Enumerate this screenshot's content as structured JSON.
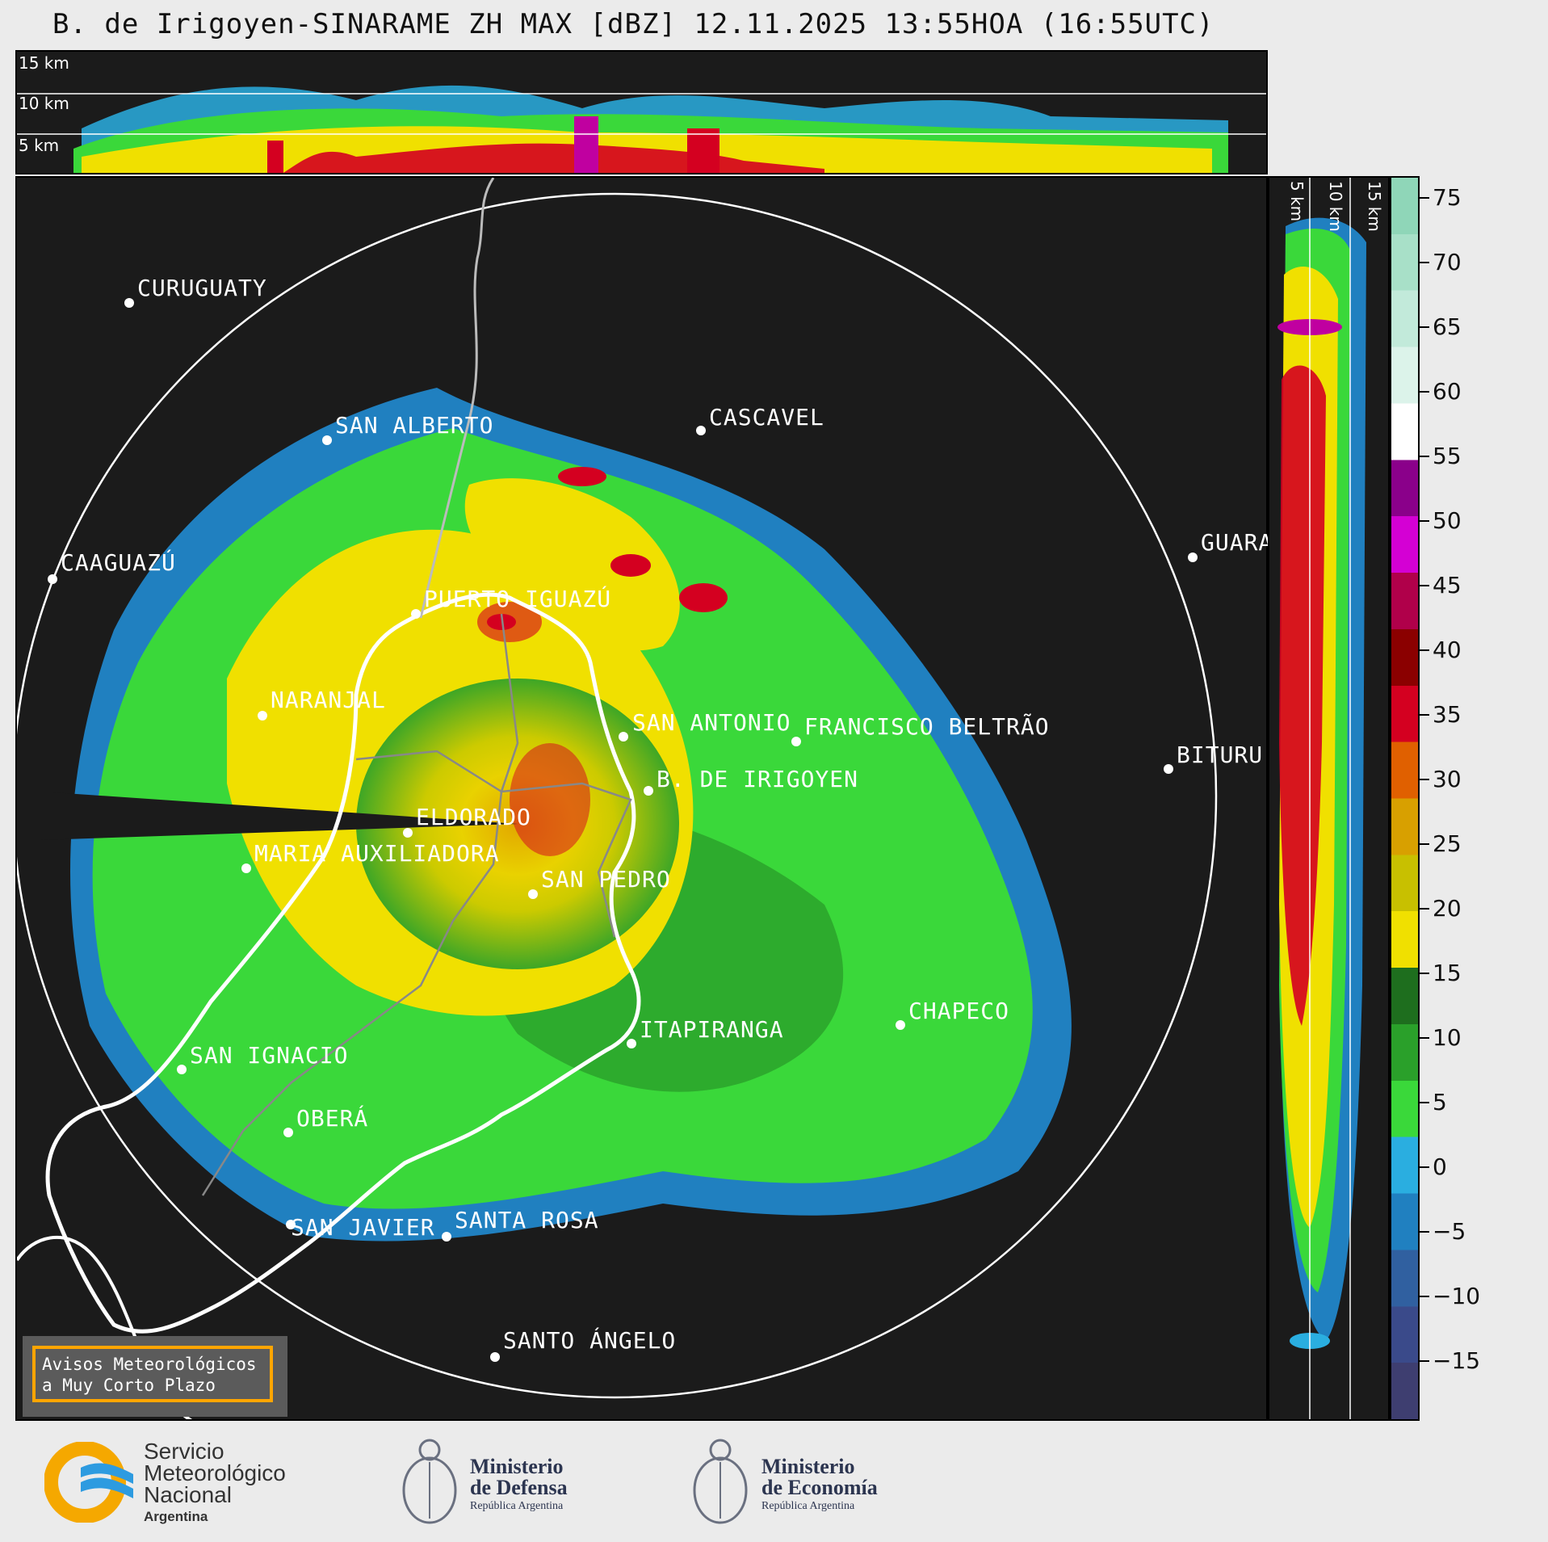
{
  "title": "B. de Irigoyen-SINARAME ZH MAX [dBZ] 12.11.2025 13:55HOA (16:55UTC)",
  "top_panel": {
    "labels": [
      "15 km",
      "10 km",
      "5 km"
    ]
  },
  "side_panel": {
    "labels": [
      "5 km",
      "10 km",
      "15 km"
    ]
  },
  "colorbar": {
    "ticks": [
      "75",
      "70",
      "65",
      "60",
      "55",
      "50",
      "45",
      "40",
      "35",
      "30",
      "25",
      "20",
      "15",
      "10",
      "5",
      "0",
      "−5",
      "−10",
      "−15"
    ],
    "colors": [
      "#8fd6b8",
      "#a8e0c8",
      "#c2eada",
      "#dcf3ea",
      "#ffffff",
      "#8a008a",
      "#d400d4",
      "#b0004a",
      "#8b0000",
      "#d40020",
      "#e06000",
      "#d8a000",
      "#c8c000",
      "#f0e000",
      "#1e6e1e",
      "#2aa02a",
      "#3ad83a",
      "#2aaee0",
      "#2080c0",
      "#3060a0",
      "#3a4a8a",
      "#3e3e70"
    ]
  },
  "cities": [
    {
      "name": "CURUGUATY"
    },
    {
      "name": "SAN ALBERTO"
    },
    {
      "name": "CASCAVEL"
    },
    {
      "name": "CAAGUAZÚ"
    },
    {
      "name": "GUARA"
    },
    {
      "name": "PUERTO IGUAZÚ"
    },
    {
      "name": "NARANJAL"
    },
    {
      "name": "SAN ANTONIO"
    },
    {
      "name": "FRANCISCO BELTRÃO"
    },
    {
      "name": "BITURU"
    },
    {
      "name": "B. DE IRIGOYEN"
    },
    {
      "name": "ELDORADO"
    },
    {
      "name": "MARIA AUXILIADORA"
    },
    {
      "name": "SAN PEDRO"
    },
    {
      "name": "CHAPECO"
    },
    {
      "name": "ITAPIRANGA"
    },
    {
      "name": "SAN IGNACIO"
    },
    {
      "name": "OBERÁ"
    },
    {
      "name": "SAN JAVIER"
    },
    {
      "name": "SANTA ROSA"
    },
    {
      "name": "SANTO ÁNGELO"
    }
  ],
  "warning": {
    "line1": "Avisos Meteorológicos",
    "line2": "a Muy Corto Plazo"
  },
  "logos": {
    "smn": {
      "line1": "Servicio",
      "line2": "Meteorológico",
      "line3": "Nacional",
      "line4": "Argentina"
    },
    "defensa": {
      "line1": "Ministerio",
      "line2": "de Defensa",
      "line3": "República Argentina"
    },
    "economia": {
      "line1": "Ministerio",
      "line2": "de Economía",
      "line3": "República Argentina"
    }
  }
}
